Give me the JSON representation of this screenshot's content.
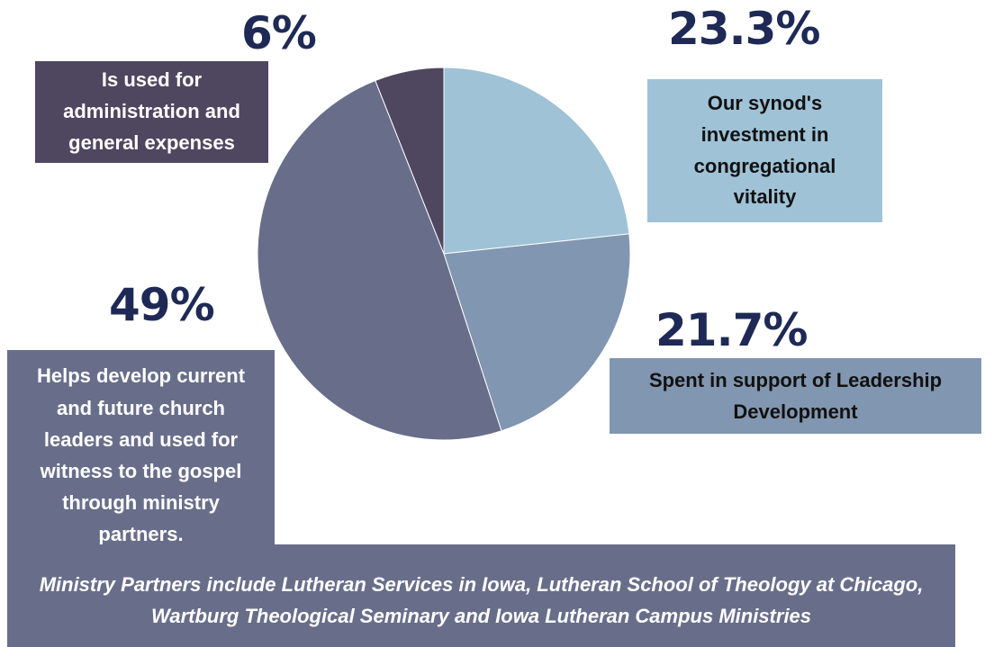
{
  "chart_data": {
    "type": "pie",
    "values": [
      23.3,
      21.7,
      49,
      6
    ],
    "colors": [
      "#9fc2d6",
      "#8196b0",
      "#686e8a",
      "#4f465f"
    ],
    "labels": [
      {
        "value_label": "23.3%",
        "text": "Our synod's investment in congregational vitality"
      },
      {
        "value_label": "21.7%",
        "text": "Spent in support of Leadership Development"
      },
      {
        "value_label": "49%",
        "text": "Helps develop current and future church leaders and  used for witness to the gospel through ministry partners."
      },
      {
        "value_label": "6%",
        "text": "Is used for administration and general expenses"
      }
    ],
    "text_color": "#1e2a55"
  },
  "footnote": "Ministry Partners include Lutheran Services in Iowa, Lutheran School of Theology at Chicago, Wartburg Theological Seminary and Iowa Lutheran Campus Ministries"
}
